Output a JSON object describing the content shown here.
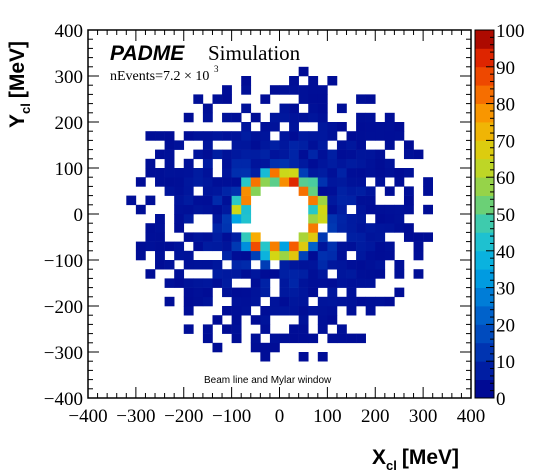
{
  "chart_data": {
    "type": "heatmap",
    "brand": "PADME",
    "subtitle": "Simulation",
    "events_label": "nEvents=7.2 × 10",
    "events_exponent": "3",
    "annotation": "Beam line and Mylar window",
    "xlabel": "X",
    "xlabel_sub": "cl",
    "xlabel_unit": "[MeV]",
    "ylabel": "Y",
    "ylabel_sub": "cl",
    "ylabel_unit": "[MeV]",
    "xlim": [
      -400,
      400
    ],
    "ylim": [
      -400,
      400
    ],
    "zlim": [
      0,
      100
    ],
    "bin_size": 20,
    "x_ticks": [
      "−400",
      "−300",
      "−200",
      "−100",
      "0",
      "100",
      "200",
      "300",
      "400"
    ],
    "y_ticks": [
      "400",
      "300",
      "200",
      "100",
      "0",
      "−100",
      "−200",
      "−300",
      "−400"
    ],
    "z_ticks": [
      "100",
      "90",
      "80",
      "70",
      "60",
      "50",
      "40",
      "30",
      "20",
      "10",
      "0"
    ],
    "distribution": {
      "inner_hole_radius": 60,
      "outer_radius": 310,
      "ring_peak": 100,
      "ring_peak_radius": 80
    }
  }
}
